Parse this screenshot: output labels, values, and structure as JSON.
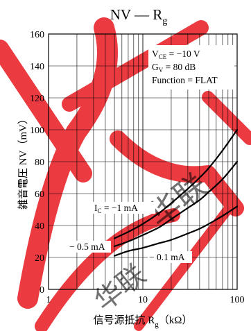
{
  "chart_data": {
    "type": "line",
    "title": {
      "main": "NV — R",
      "sub": "g"
    },
    "xlabel": {
      "main": "信号源抵抗 R",
      "sub": "g",
      "unit": "（kΩ）"
    },
    "ylabel": "雑音電圧 NV（mV）",
    "x_scale": "log",
    "xlim": [
      1,
      100
    ],
    "ylim": [
      0,
      160
    ],
    "x_ticks": [
      1,
      10,
      100
    ],
    "x_tick_labels": [
      "1",
      "10",
      "100"
    ],
    "y_ticks": [
      0,
      20,
      40,
      60,
      80,
      100,
      120,
      140,
      160
    ],
    "y_tick_labels": [
      "0",
      "20",
      "40",
      "60",
      "80",
      "100",
      "120",
      "140",
      "160"
    ],
    "grid": true,
    "conditions": [
      {
        "main": "V",
        "sub": "CE",
        "rest": " = −10 V"
      },
      {
        "main": "G",
        "sub": "V",
        "rest": " = 80 dB"
      },
      {
        "main": "Function = FLAT",
        "sub": "",
        "rest": ""
      }
    ],
    "series": [
      {
        "name": "I_C = −1 mA",
        "label": {
          "main": "I",
          "sub": "C",
          "rest": " = −1 mA"
        },
        "x": [
          5,
          7,
          10,
          15,
          20,
          30,
          40,
          50,
          70,
          100
        ],
        "y": [
          32,
          36,
          41,
          48,
          54,
          63,
          70,
          76,
          87,
          100
        ]
      },
      {
        "name": "−0.5 mA",
        "label": {
          "main": "− 0.5 mA",
          "sub": "",
          "rest": ""
        },
        "x": [
          5,
          7,
          10,
          15,
          20,
          30,
          40,
          50,
          70,
          100
        ],
        "y": [
          27,
          30,
          34,
          39,
          44,
          51,
          56,
          61,
          69,
          80
        ]
      },
      {
        "name": "−0.1 mA",
        "label": {
          "main": "− 0.1 mA",
          "sub": "",
          "rest": ""
        },
        "x": [
          5,
          7,
          10,
          15,
          20,
          30,
          40,
          50,
          70,
          100
        ],
        "y": [
          21,
          24,
          26,
          29,
          31,
          35,
          38,
          41,
          46,
          52
        ]
      }
    ]
  },
  "watermark_text": "华联",
  "colors": {
    "line": "#000000",
    "grid": "#000000",
    "background": "#ffffff",
    "watermark": "#e8191f"
  }
}
